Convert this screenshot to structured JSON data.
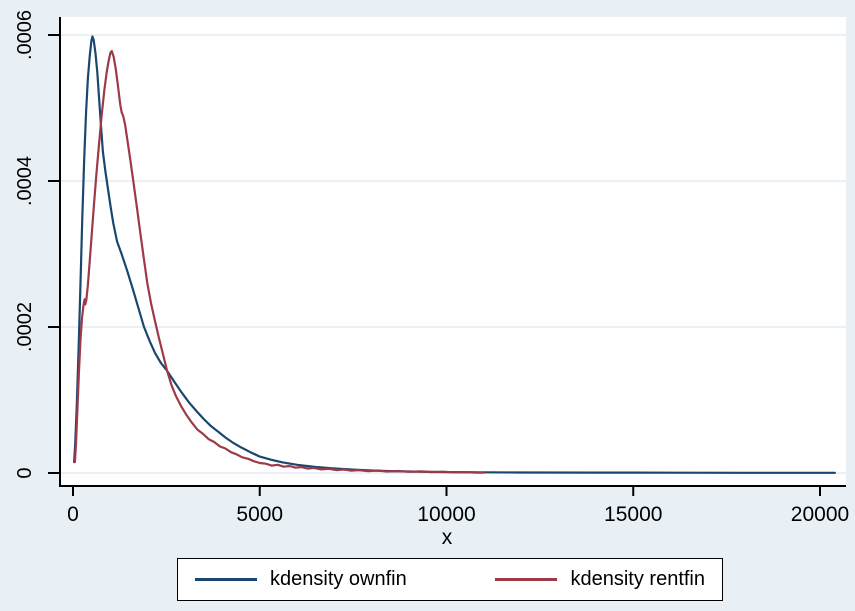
{
  "chart_data": {
    "type": "line",
    "title": "",
    "xlabel": "x",
    "ylabel": "",
    "x_range": [
      0,
      20400
    ],
    "y_range": [
      0,
      0.0006
    ],
    "grid": "horizontal",
    "legend_position": "bottom",
    "colors": {
      "canvas_background": "#e9f0f5",
      "plot_background": "#ffffff",
      "gridline": "#e3ecf3",
      "axis": "#000000",
      "text": "#000000"
    },
    "x_ticks": [
      {
        "value": 0,
        "label": "0"
      },
      {
        "value": 5000,
        "label": "5000"
      },
      {
        "value": 10000,
        "label": "10000"
      },
      {
        "value": 15000,
        "label": "15000"
      },
      {
        "value": 20000,
        "label": "20000"
      }
    ],
    "y_ticks": [
      {
        "value": 0,
        "label": "0"
      },
      {
        "value": 0.0002,
        "label": ".0002"
      },
      {
        "value": 0.0004,
        "label": ".0004"
      },
      {
        "value": 0.0006,
        "label": ".0006"
      }
    ],
    "series": [
      {
        "name": "kdensity ownfin",
        "color": "#1a476f",
        "peak": {
          "x": 520,
          "y": 0.000598
        },
        "points": [
          [
            30,
            1.5e-05
          ],
          [
            60,
            4e-05
          ],
          [
            100,
            9e-05
          ],
          [
            150,
            0.00017
          ],
          [
            200,
            0.00026
          ],
          [
            250,
            0.00035
          ],
          [
            300,
            0.00043
          ],
          [
            350,
            0.000495
          ],
          [
            400,
            0.000541
          ],
          [
            450,
            0.000572
          ],
          [
            490,
            0.000591
          ],
          [
            520,
            0.000598
          ],
          [
            555,
            0.000593
          ],
          [
            600,
            0.000576
          ],
          [
            650,
            0.000549
          ],
          [
            700,
            0.000513
          ],
          [
            750,
            0.000475
          ],
          [
            800,
            0.00044
          ],
          [
            870,
            0.000412
          ],
          [
            940,
            0.000388
          ],
          [
            1010,
            0.000364
          ],
          [
            1080,
            0.000342
          ],
          [
            1180,
            0.000317
          ],
          [
            1300,
            0.0003
          ],
          [
            1450,
            0.000277
          ],
          [
            1600,
            0.000252
          ],
          [
            1750,
            0.000226
          ],
          [
            1900,
            0.0002
          ],
          [
            2050,
            0.000181
          ],
          [
            2200,
            0.000164
          ],
          [
            2350,
            0.000151
          ],
          [
            2520,
            0.00014
          ],
          [
            2700,
            0.000126
          ],
          [
            2900,
            0.000111
          ],
          [
            3100,
            9.7e-05
          ],
          [
            3300,
            8.5e-05
          ],
          [
            3500,
            7.4e-05
          ],
          [
            3700,
            6.4e-05
          ],
          [
            3900,
            5.6e-05
          ],
          [
            4100,
            4.8e-05
          ],
          [
            4300,
            4.1e-05
          ],
          [
            4500,
            3.5e-05
          ],
          [
            4750,
            2.85e-05
          ],
          [
            5000,
            2.25e-05
          ],
          [
            5300,
            1.82e-05
          ],
          [
            5600,
            1.47e-05
          ],
          [
            6000,
            1.12e-05
          ],
          [
            6500,
            8.2e-06
          ],
          [
            7000,
            6.1e-06
          ],
          [
            7500,
            4.6e-06
          ],
          [
            8000,
            3.4e-06
          ],
          [
            8500,
            2.6e-06
          ],
          [
            9000,
            2e-06
          ],
          [
            10000,
            1.3e-06
          ],
          [
            11000,
            9e-07
          ],
          [
            12000,
            7e-07
          ],
          [
            14000,
            5e-07
          ],
          [
            16000,
            4e-07
          ],
          [
            18000,
            3e-07
          ],
          [
            20400,
            3e-07
          ]
        ]
      },
      {
        "name": "kdensity rentfin",
        "color": "#9e3a48",
        "peak": {
          "x": 1040,
          "y": 0.000578
        },
        "points": [
          [
            50,
            1.5e-05
          ],
          [
            80,
            4e-05
          ],
          [
            120,
            9e-05
          ],
          [
            160,
            0.00014
          ],
          [
            200,
            0.000183
          ],
          [
            240,
            0.000212
          ],
          [
            280,
            0.00023
          ],
          [
            310,
            0.000238
          ],
          [
            330,
            0.000231
          ],
          [
            355,
            0.000237
          ],
          [
            395,
            0.000256
          ],
          [
            445,
            0.000288
          ],
          [
            505,
            0.00033
          ],
          [
            565,
            0.00037
          ],
          [
            625,
            0.000408
          ],
          [
            695,
            0.00045
          ],
          [
            765,
            0.000489
          ],
          [
            835,
            0.000523
          ],
          [
            905,
            0.00055
          ],
          [
            955,
            0.000565
          ],
          [
            1005,
            0.000576
          ],
          [
            1040,
            0.000578
          ],
          [
            1090,
            0.00057
          ],
          [
            1145,
            0.000553
          ],
          [
            1205,
            0.00053
          ],
          [
            1265,
            0.000505
          ],
          [
            1305,
            0.000494
          ],
          [
            1345,
            0.000489
          ],
          [
            1395,
            0.000477
          ],
          [
            1455,
            0.000457
          ],
          [
            1535,
            0.000429
          ],
          [
            1620,
            0.000398
          ],
          [
            1710,
            0.000364
          ],
          [
            1800,
            0.00033
          ],
          [
            1890,
            0.000296
          ],
          [
            1990,
            0.00026
          ],
          [
            2090,
            0.000232
          ],
          [
            2200,
            0.000207
          ],
          [
            2300,
            0.000185
          ],
          [
            2400,
            0.000165
          ],
          [
            2520,
            0.00014
          ],
          [
            2640,
            0.00012
          ],
          [
            2760,
            0.000105
          ],
          [
            2890,
            9.2e-05
          ],
          [
            3030,
            8e-05
          ],
          [
            3180,
            6.9e-05
          ],
          [
            3330,
            5.95e-05
          ],
          [
            3480,
            5.35e-05
          ],
          [
            3630,
            4.65e-05
          ],
          [
            3780,
            4.25e-05
          ],
          [
            3930,
            3.65e-05
          ],
          [
            4080,
            3.35e-05
          ],
          [
            4230,
            2.85e-05
          ],
          [
            4380,
            2.55e-05
          ],
          [
            4530,
            2.15e-05
          ],
          [
            4690,
            1.95e-05
          ],
          [
            4850,
            1.6e-05
          ],
          [
            5000,
            1.37e-05
          ],
          [
            5160,
            1.28e-05
          ],
          [
            5320,
            1.02e-05
          ],
          [
            5480,
            1.12e-05
          ],
          [
            5640,
            8.6e-06
          ],
          [
            5800,
            9.6e-06
          ],
          [
            5960,
            7.2e-06
          ],
          [
            6120,
            8.2e-06
          ],
          [
            6280,
            6e-06
          ],
          [
            6450,
            7e-06
          ],
          [
            6650,
            5e-06
          ],
          [
            6850,
            5.8e-06
          ],
          [
            7050,
            4e-06
          ],
          [
            7250,
            4.8e-06
          ],
          [
            7450,
            3.2e-06
          ],
          [
            7650,
            4e-06
          ],
          [
            7900,
            2.6e-06
          ],
          [
            8150,
            3.4e-06
          ],
          [
            8400,
            2e-06
          ],
          [
            8700,
            2.8e-06
          ],
          [
            9000,
            1.6e-06
          ],
          [
            9300,
            2.2e-06
          ],
          [
            9600,
            1.2e-06
          ],
          [
            9900,
            1.8e-06
          ],
          [
            10200,
            9e-07
          ],
          [
            10500,
            1.3e-06
          ],
          [
            10800,
            6e-07
          ],
          [
            11000,
            5e-07
          ]
        ]
      }
    ]
  }
}
